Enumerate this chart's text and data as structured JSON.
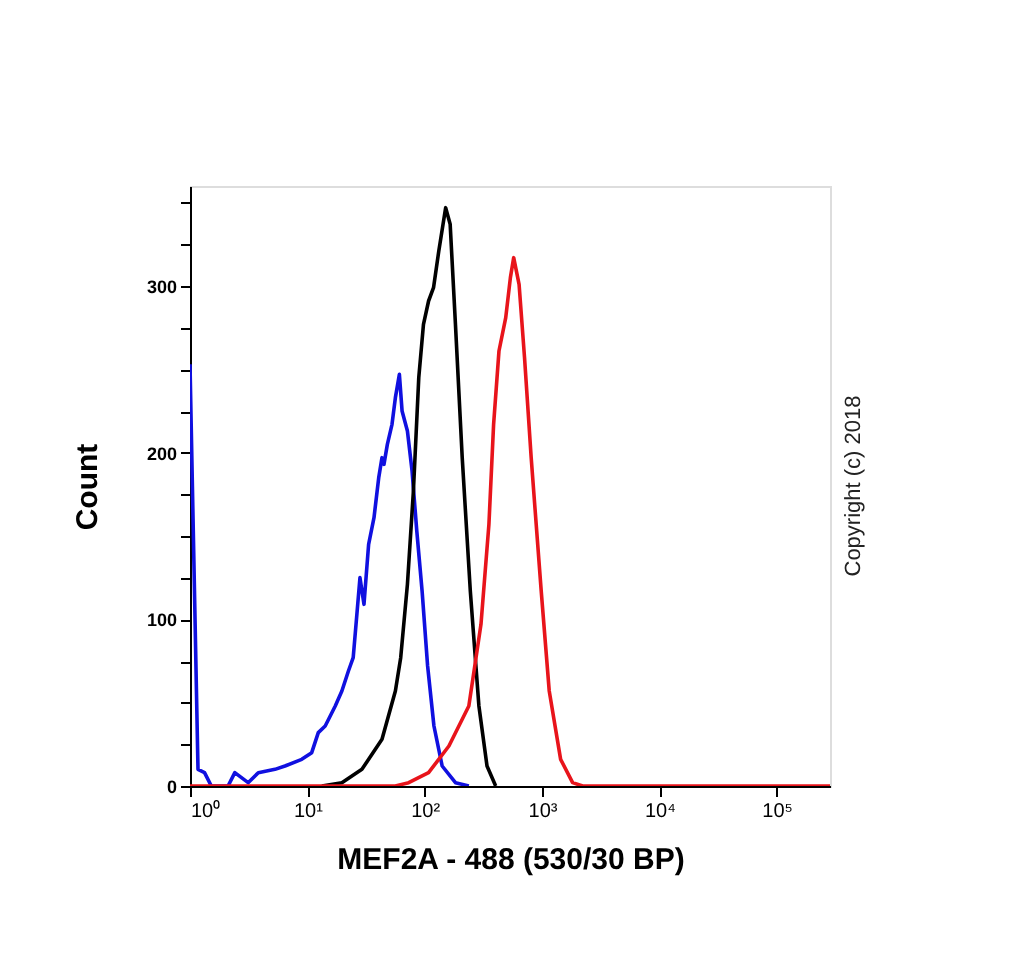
{
  "chart_data": {
    "type": "line",
    "xlabel": "MEF2A - 488 (530/30 BP)",
    "ylabel": "Count",
    "log": "x",
    "grid": false,
    "legend": false,
    "marker": "none",
    "line_style": "solid",
    "xlim": [
      1,
      285000
    ],
    "ylim": [
      0,
      360
    ],
    "xticks": [
      {
        "value": 1,
        "label": "10⁰"
      },
      {
        "value": 10,
        "label": "10¹"
      },
      {
        "value": 100,
        "label": "10²"
      },
      {
        "value": 1000,
        "label": "10³"
      },
      {
        "value": 10000,
        "label": "10⁴"
      },
      {
        "value": 100000,
        "label": "10⁵"
      }
    ],
    "yticks": [
      0,
      {
        "value": 25,
        "label": null
      },
      {
        "value": 50,
        "label": null
      },
      {
        "value": 75,
        "label": null
      },
      100,
      {
        "value": 125,
        "label": null
      },
      {
        "value": 150,
        "label": null
      },
      {
        "value": 175,
        "label": null
      },
      200,
      {
        "value": 225,
        "label": null
      },
      {
        "value": 250,
        "label": null
      },
      {
        "value": 275,
        "label": null
      },
      300,
      {
        "value": 325,
        "label": null
      },
      {
        "value": 350,
        "label": null
      }
    ],
    "annotations": [
      "Copyright (c) 2018"
    ],
    "series": [
      {
        "color": "#1010e0",
        "x": [
          1,
          1.17,
          1.33,
          1.52,
          2.11,
          2.41,
          3.13,
          3.82,
          5.3,
          6.45,
          8.96,
          10.9,
          12.4,
          14.2,
          17.3,
          19.7,
          22.4,
          24.6,
          26.3,
          28.1,
          30.4,
          33.3,
          37,
          40.6,
          43.3,
          45,
          48.1,
          52.7,
          56.3,
          60.9,
          64.2,
          71.3,
          78.1,
          85.7,
          95.1,
          106,
          120,
          141,
          183,
          238
        ],
        "values": [
          253,
          10,
          8,
          0,
          0,
          8,
          2,
          8,
          10,
          12,
          16,
          20,
          32,
          36,
          48,
          57,
          69,
          77,
          101,
          125,
          109,
          145,
          161,
          185,
          197,
          193,
          205,
          217,
          233,
          247,
          225,
          213,
          189,
          153,
          117,
          72,
          36,
          12,
          2,
          0
        ]
      },
      {
        "color": "#000000",
        "x": [
          13.3,
          19.7,
          29.2,
          43.3,
          56.3,
          62.5,
          71.3,
          80.2,
          89.1,
          97.7,
          108,
          119,
          132,
          151,
          165,
          183,
          209,
          245,
          290,
          340,
          403
        ],
        "values": [
          0,
          2,
          10,
          28,
          57,
          77,
          121,
          177,
          245,
          277,
          291,
          299,
          321,
          347,
          337,
          277,
          197,
          117,
          48,
          12,
          0
        ]
      },
      {
        "color": "#e8141b",
        "x": [
          1,
          56.3,
          73.1,
          108,
          161,
          238,
          302,
          353,
          387,
          430,
          491,
          538,
          574,
          638,
          710,
          809,
          985,
          1153,
          1442,
          1824,
          2223,
          285000
        ],
        "values": [
          0,
          0,
          2,
          8,
          24,
          48,
          97,
          157,
          217,
          261,
          281,
          305,
          317,
          301,
          257,
          197,
          117,
          57,
          16,
          2,
          0,
          0
        ]
      }
    ]
  }
}
